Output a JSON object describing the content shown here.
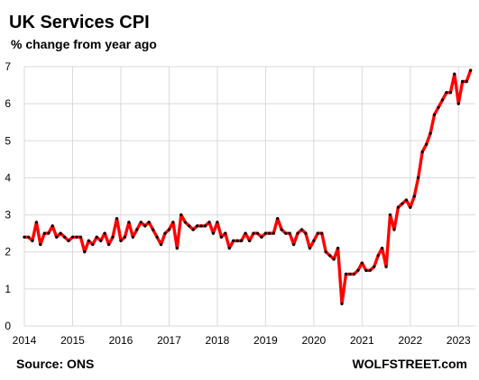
{
  "chart_data": {
    "type": "line",
    "title": "UK Services CPI",
    "subtitle": "% change from year ago",
    "xlabel": "",
    "ylabel": "",
    "ylim": [
      0,
      7
    ],
    "xlim": [
      2014.0,
      2023.35
    ],
    "grid": true,
    "x_ticks": [
      "2014",
      "2015",
      "2016",
      "2017",
      "2018",
      "2019",
      "2020",
      "2021",
      "2022",
      "2023"
    ],
    "y_ticks": [
      "0",
      "1",
      "2",
      "3",
      "4",
      "5",
      "6",
      "7"
    ],
    "line_color": "#ff0000",
    "marker_color": "#000000",
    "series": [
      {
        "x_start": "2014-01",
        "x_step": "month",
        "values": [
          2.4,
          2.4,
          2.3,
          2.8,
          2.2,
          2.5,
          2.5,
          2.7,
          2.4,
          2.5,
          2.4,
          2.3,
          2.4,
          2.4,
          2.4,
          2.0,
          2.3,
          2.2,
          2.4,
          2.3,
          2.5,
          2.2,
          2.4,
          2.9,
          2.3,
          2.4,
          2.8,
          2.4,
          2.6,
          2.8,
          2.7,
          2.8,
          2.6,
          2.4,
          2.2,
          2.5,
          2.6,
          2.8,
          2.1,
          3.0,
          2.8,
          2.7,
          2.6,
          2.7,
          2.7,
          2.7,
          2.8,
          2.5,
          2.8,
          2.4,
          2.5,
          2.1,
          2.3,
          2.3,
          2.3,
          2.5,
          2.3,
          2.5,
          2.5,
          2.4,
          2.5,
          2.5,
          2.5,
          2.9,
          2.6,
          2.5,
          2.5,
          2.2,
          2.5,
          2.6,
          2.5,
          2.1,
          2.3,
          2.5,
          2.5,
          2.0,
          1.9,
          1.8,
          2.1,
          0.6,
          1.4,
          1.4,
          1.4,
          1.5,
          1.7,
          1.5,
          1.5,
          1.6,
          1.9,
          2.1,
          1.6,
          3.0,
          2.6,
          3.2,
          3.3,
          3.4,
          3.2,
          3.5,
          4.0,
          4.7,
          4.9,
          5.2,
          5.7,
          5.9,
          6.1,
          6.3,
          6.3,
          6.8,
          6.0,
          6.6,
          6.6,
          6.9
        ]
      }
    ]
  },
  "footer": {
    "source": "Source: ONS",
    "brand": "WOLFSTREET.com"
  }
}
